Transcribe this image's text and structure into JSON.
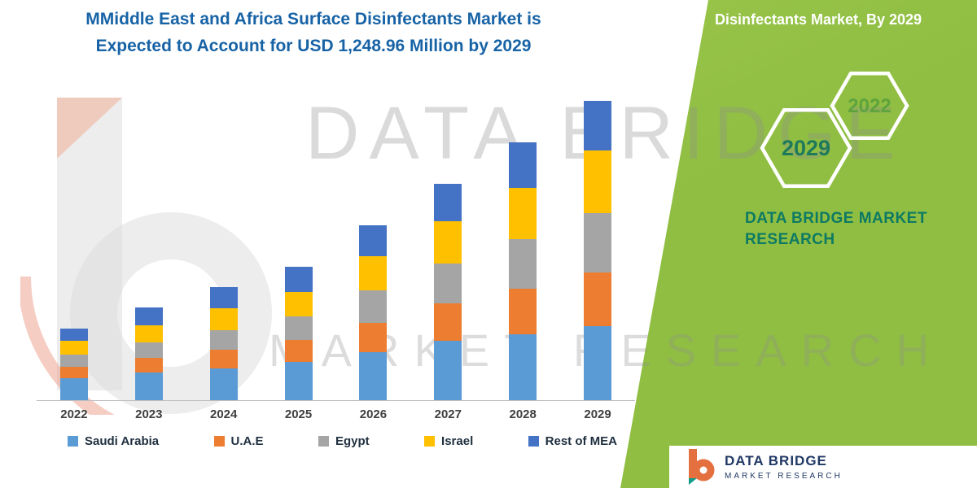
{
  "title": {
    "line1": "MMiddle East and Africa Surface  Disinfectants Market is",
    "line2": "Expected to Account for USD 1,248.96 Million by 2029"
  },
  "side_panel": {
    "heading": "Disinfectants Market, By 2029",
    "hexagon_labels": [
      "2029",
      "2022"
    ],
    "brand_line1": "DATA BRIDGE MARKET",
    "brand_line2": "RESEARCH"
  },
  "watermark": {
    "line1": "DATA BRIDGE",
    "line2": "MARKET RESEARCH"
  },
  "footer": {
    "brand": "DATA BRIDGE",
    "brand_sub": "MARKET RESEARCH"
  },
  "colors": {
    "title_text": "#1763A6",
    "panel_green": "#8FBE42",
    "panel_green_light": "#A3CC52",
    "brand_teal": "#0E7A63",
    "hex_2029_text": "#1E7A5A",
    "hex_2022_text": "#5EA33C",
    "axis_line": "#BFBFBF",
    "xlabel_gray": "#404040",
    "legend_text": "#203040",
    "footer_navy": "#203864",
    "logo_orange": "#E4703F",
    "logo_teal": "#119B8A"
  },
  "chart_data": {
    "type": "bar",
    "stacked": true,
    "title": "MMiddle East and Africa Surface Disinfectants Market is Expected to Account for USD 1,248.96 Million by 2029",
    "unit": "USD Million",
    "categories": [
      "2022",
      "2023",
      "2024",
      "2025",
      "2026",
      "2027",
      "2028",
      "2029"
    ],
    "series": [
      {
        "name": "Saudi Arabia",
        "color": "#5B9BD5",
        "values": [
          93,
          114,
          131,
          159,
          200,
          248,
          276,
          310
        ]
      },
      {
        "name": "U.A.E",
        "color": "#ED7D31",
        "values": [
          48,
          62,
          79,
          93,
          124,
          155,
          190,
          224
        ]
      },
      {
        "name": "Egypt",
        "color": "#A5A5A5",
        "values": [
          48,
          66,
          83,
          97,
          135,
          166,
          207,
          248
        ]
      },
      {
        "name": "Israel",
        "color": "#FFC000",
        "values": [
          59,
          72,
          90,
          104,
          141,
          176,
          214,
          259
        ]
      },
      {
        "name": "Rest of MEA",
        "color": "#4472C4",
        "values": [
          52,
          72,
          90,
          104,
          131,
          159,
          190,
          207.96
        ]
      }
    ],
    "totals": [
      300,
      386,
      473,
      557,
      731,
      904,
      1077,
      1248.96
    ],
    "xlabel": "",
    "ylabel": "",
    "gridlines": false,
    "y_axis_labels_visible": false,
    "legend_position": "bottom"
  }
}
